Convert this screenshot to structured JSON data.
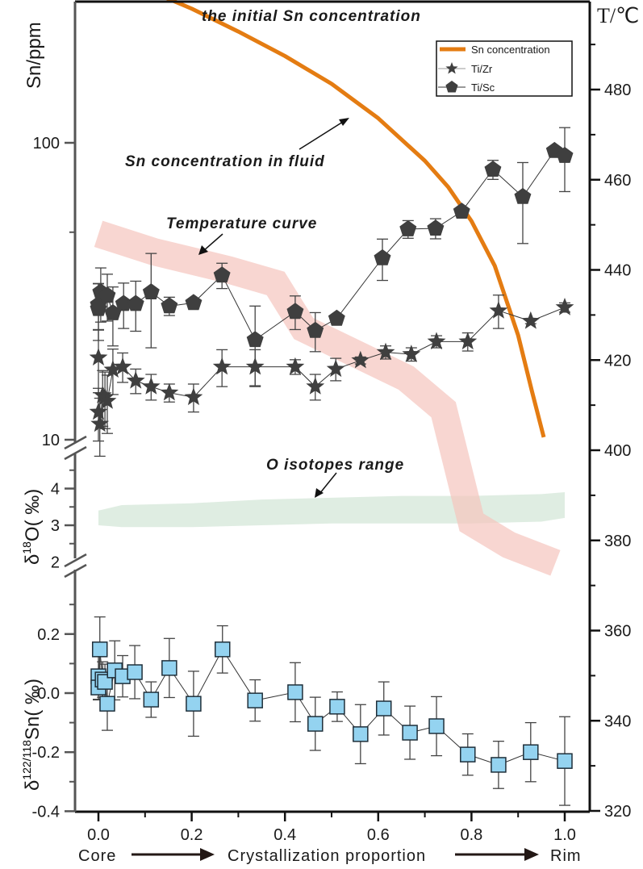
{
  "chart_data": {
    "type": "line",
    "title": "",
    "x": {
      "label": "Crystallization proportion",
      "label_left": "Core",
      "label_right": "Rim",
      "range": [
        -0.05,
        1.05
      ],
      "ticks": [
        0.0,
        0.2,
        0.4,
        0.6,
        0.8,
        1.0
      ],
      "tick_labels": [
        "0.0",
        "0.2",
        "0.4",
        "0.6",
        "0.8",
        "1.0"
      ]
    },
    "panels": {
      "top": {
        "ylabel": "Sn/ppm",
        "scale": "log",
        "ticks": [
          10,
          100
        ],
        "tick_labels": [
          "10",
          "100"
        ],
        "range": [
          10,
          385
        ]
      },
      "middle": {
        "ylabel_main": "δ",
        "ylabel_sup": "18",
        "ylabel_tail": "O( ‰)",
        "ticks": [
          2,
          3,
          4
        ],
        "tick_labels": [
          "2",
          "3",
          "4"
        ],
        "range": [
          2,
          4.7
        ]
      },
      "bottom": {
        "ylabel_main": "δ",
        "ylabel_sup": "122/118",
        "ylabel_tail": "Sn( ‰)",
        "ticks": [
          -0.4,
          -0.2,
          0.0,
          0.2
        ],
        "tick_labels": [
          "-0.4",
          "-0.2",
          "0.0",
          "0.2"
        ],
        "range": [
          -0.4,
          0.35
        ]
      }
    },
    "right_axis": {
      "label": "T/℃",
      "ticks": [
        320,
        340,
        360,
        380,
        400,
        420,
        440,
        460,
        480
      ],
      "tick_labels": [
        "320",
        "340",
        "360",
        "380",
        "400",
        "420",
        "440",
        "460",
        "480"
      ],
      "range": [
        320,
        500
      ]
    },
    "initial_sn": {
      "label": "the initial Sn concentration",
      "value": 380
    },
    "legend": {
      "position": "top-right",
      "entries": [
        "Sn concentration",
        "Ti/Zr",
        "Ti/Sc"
      ]
    },
    "annotations": {
      "sn_curve": "Sn concentration in fluid",
      "temperature": "Temperature  curve",
      "o_isotopes": "O isotopes range"
    },
    "series": [
      {
        "name": "Sn concentration",
        "panel": "top",
        "color": "#e47c12",
        "x": [
          0.0,
          0.1,
          0.2,
          0.3,
          0.4,
          0.5,
          0.6,
          0.7,
          0.75,
          0.8,
          0.85,
          0.9,
          0.93,
          0.955
        ],
        "y": [
          380,
          330,
          283,
          237,
          196,
          158,
          121,
          87,
          71,
          54.5,
          38.5,
          22.5,
          14.5,
          10.2
        ]
      },
      {
        "name": "Ti/Sc",
        "panel": "top",
        "color": "#3f3f3f",
        "x": [
          0.0,
          0.0,
          0.005,
          0.019,
          0.031,
          0.054,
          0.08,
          0.113,
          0.152,
          0.204,
          0.265,
          0.336,
          0.422,
          0.465,
          0.511,
          0.609,
          0.664,
          0.723,
          0.779,
          0.846,
          0.91,
          0.978,
          1.0
        ],
        "y": [
          27.6,
          28.5,
          31.4,
          30.6,
          26.7,
          28.7,
          28.7,
          31.4,
          28.2,
          28.9,
          35.8,
          21.7,
          27.0,
          23.3,
          25.6,
          40.9,
          51.2,
          51.5,
          58.7,
          81.3,
          65.8,
          94.0,
          90.5
        ],
        "err": [
          6.0,
          5.0,
          6.5,
          5.5,
          6.0,
          5.0,
          5.5,
          11.0,
          2.0,
          0.5,
          3.5,
          6.5,
          3.5,
          3.5,
          0.5,
          6.5,
          3.5,
          4.0,
          1.5,
          6.0,
          20.0,
          2.5,
          22.0
        ]
      },
      {
        "name": "Ti/Zr",
        "panel": "top",
        "color": "#3f3f3f",
        "x": [
          0.0,
          0.0,
          0.003,
          0.009,
          0.014,
          0.019,
          0.031,
          0.052,
          0.08,
          0.113,
          0.152,
          0.204,
          0.265,
          0.336,
          0.422,
          0.465,
          0.509,
          0.562,
          0.616,
          0.671,
          0.725,
          0.792,
          0.858,
          0.927,
          1.0
        ],
        "y": [
          18.9,
          12.4,
          11.3,
          14.1,
          13.9,
          13.5,
          17.2,
          17.6,
          15.8,
          15.1,
          14.4,
          13.9,
          17.6,
          17.6,
          17.6,
          15.1,
          17.3,
          18.5,
          19.7,
          19.4,
          21.4,
          21.4,
          27.2,
          25.1,
          27.9
        ],
        "err": [
          4.5,
          2.5,
          2.5,
          3.0,
          3.0,
          3.0,
          3.0,
          2.0,
          1.5,
          1.5,
          1.0,
          1.5,
          2.5,
          2.5,
          1.0,
          1.5,
          1.5,
          0.5,
          1.0,
          1.0,
          1.0,
          1.5,
          3.5,
          0.5,
          1.0
        ]
      },
      {
        "name": "δ122/118Sn",
        "panel": "bottom",
        "color": "#94d3f0",
        "x": [
          0.0,
          0.0,
          0.003,
          0.009,
          0.014,
          0.019,
          0.035,
          0.052,
          0.078,
          0.113,
          0.152,
          0.204,
          0.266,
          0.336,
          0.422,
          0.465,
          0.512,
          0.562,
          0.612,
          0.668,
          0.725,
          0.792,
          0.858,
          0.927,
          1.0
        ],
        "y": [
          0.057,
          0.019,
          0.148,
          0.046,
          0.038,
          -0.036,
          0.077,
          0.057,
          0.071,
          -0.022,
          0.085,
          -0.036,
          0.148,
          -0.025,
          0.003,
          -0.104,
          -0.046,
          -0.139,
          -0.052,
          -0.134,
          -0.112,
          -0.208,
          -0.243,
          -0.2,
          -0.23
        ],
        "err": [
          0.08,
          0.04,
          0.11,
          0.06,
          0.06,
          0.09,
          0.1,
          0.07,
          0.09,
          0.06,
          0.1,
          0.11,
          0.08,
          0.07,
          0.1,
          0.09,
          0.05,
          0.1,
          0.09,
          0.09,
          0.1,
          0.07,
          0.08,
          0.1,
          0.15
        ]
      },
      {
        "name": "Temperature curve",
        "panel": "right",
        "color": "#f5c4be",
        "x": [
          0.0,
          0.12,
          0.28,
          0.38,
          0.44,
          0.54,
          0.66,
          0.74,
          0.8,
          0.88,
          0.98
        ],
        "T": [
          448,
          444,
          440,
          437,
          427,
          422,
          416,
          409,
          384,
          379,
          375
        ]
      },
      {
        "name": "O isotopes range",
        "panel": "middle",
        "color": "#dcebdf",
        "x": [
          0.0,
          0.05,
          0.2,
          0.35,
          0.5,
          0.65,
          0.8,
          0.95,
          1.0
        ],
        "y_low": [
          3.0,
          2.95,
          2.95,
          3.0,
          3.05,
          3.05,
          3.05,
          3.1,
          3.2
        ],
        "y_high": [
          3.4,
          3.55,
          3.6,
          3.7,
          3.75,
          3.8,
          3.8,
          3.85,
          3.9
        ]
      }
    ]
  }
}
